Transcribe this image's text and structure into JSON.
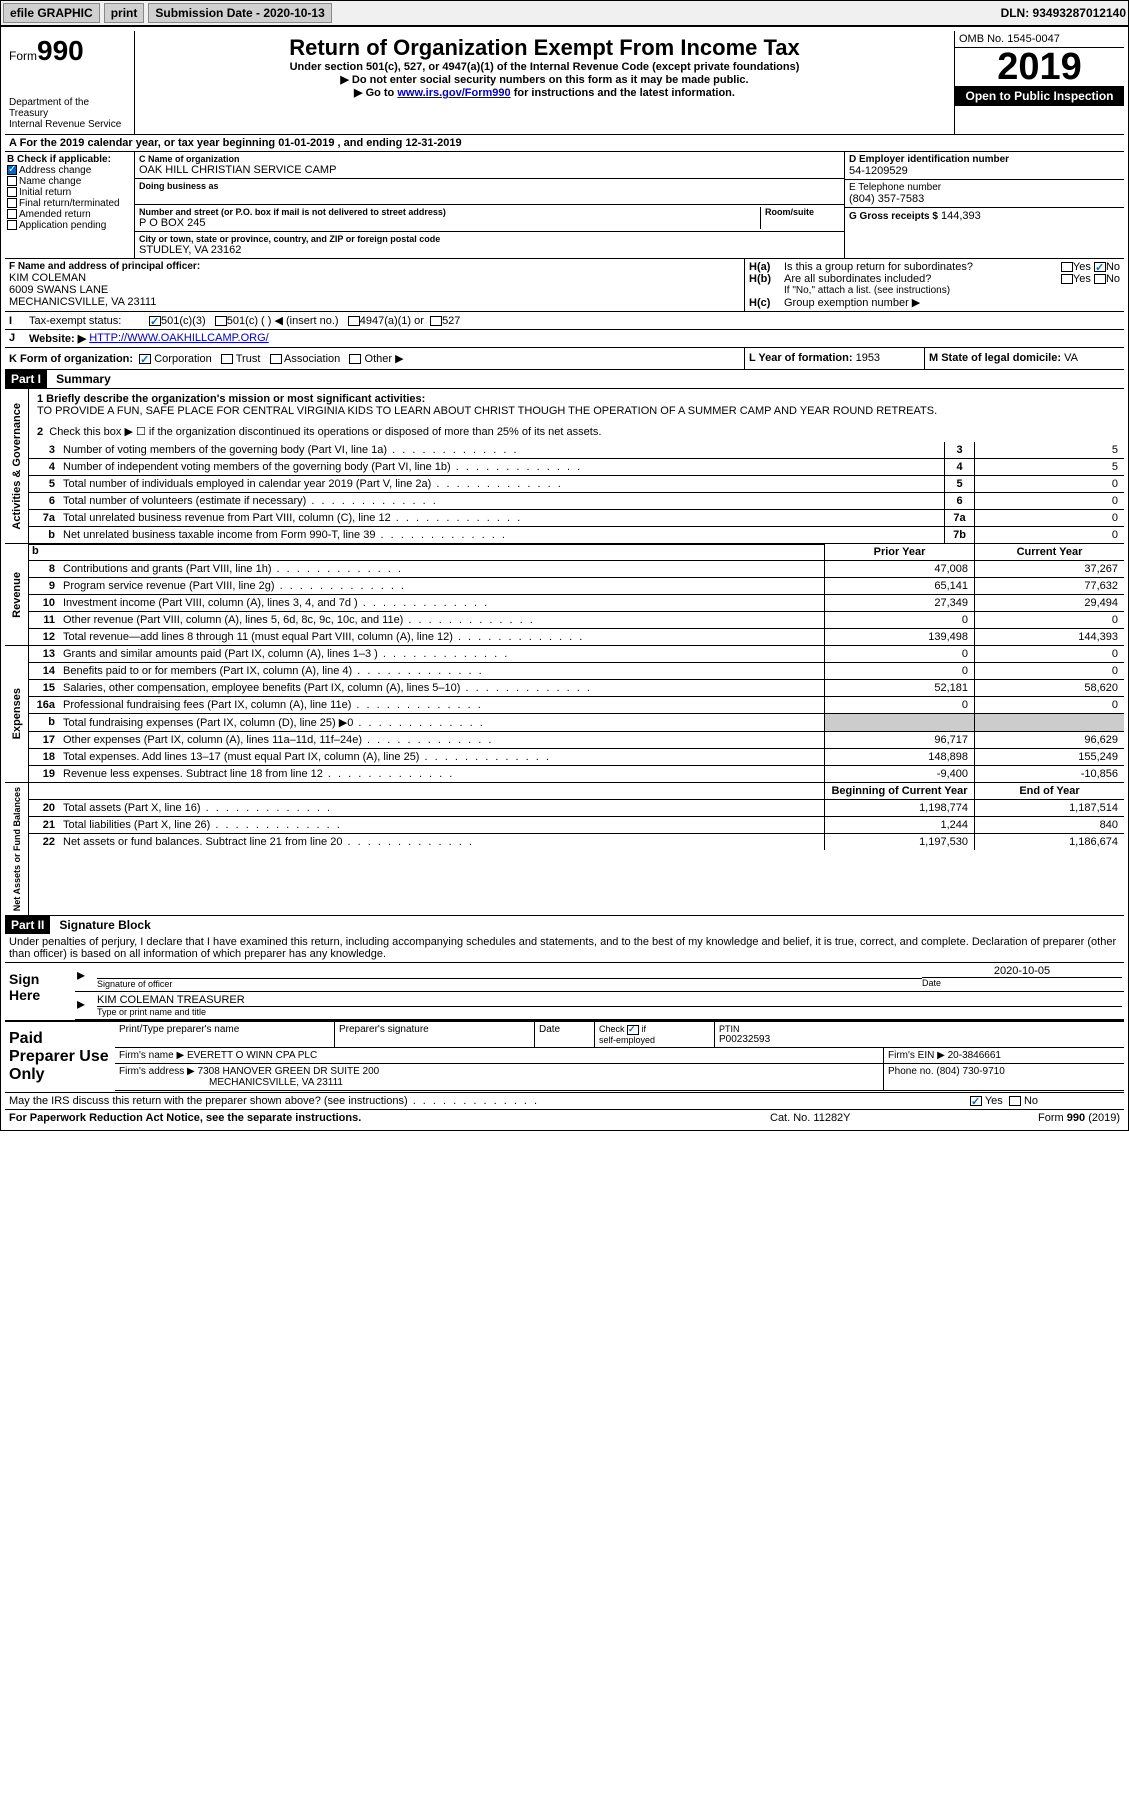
{
  "toolbar": {
    "efile_label": "efile GRAPHIC",
    "print_label": "print",
    "sub_date_label": "Submission Date - 2020-10-13",
    "dln": "DLN: 93493287012140"
  },
  "header": {
    "form_prefix": "Form",
    "form_number": "990",
    "title": "Return of Organization Exempt From Income Tax",
    "subtitle": "Under section 501(c), 527, or 4947(a)(1) of the Internal Revenue Code (except private foundations)",
    "line1": "▶ Do not enter social security numbers on this form as it may be made public.",
    "line2_pre": "▶ Go to ",
    "line2_link": "www.irs.gov/Form990",
    "line2_post": " for instructions and the latest information.",
    "dept": "Department of the Treasury\nInternal Revenue Service",
    "omb": "OMB No. 1545-0047",
    "year": "2019",
    "inspect": "Open to Public Inspection"
  },
  "section_a": "For the 2019 calendar year, or tax year beginning 01-01-2019    , and ending 12-31-2019",
  "box_b": {
    "label": "B Check if applicable:",
    "items": [
      "Address change",
      "Name change",
      "Initial return",
      "Final return/terminated",
      "Amended return",
      "Application pending"
    ],
    "checked": [
      true,
      false,
      false,
      false,
      false,
      false
    ]
  },
  "box_c": {
    "name_label": "C Name of organization",
    "name": "OAK HILL CHRISTIAN SERVICE CAMP",
    "dba_label": "Doing business as",
    "dba": "",
    "addr_label": "Number and street (or P.O. box if mail is not delivered to street address)",
    "room_label": "Room/suite",
    "addr": "P O BOX 245",
    "city_label": "City or town, state or province, country, and ZIP or foreign postal code",
    "city": "STUDLEY, VA  23162"
  },
  "box_d": {
    "label": "D Employer identification number",
    "val": "54-1209529"
  },
  "box_e": {
    "label": "E Telephone number",
    "val": "(804) 357-7583"
  },
  "box_g": {
    "label": "G Gross receipts $",
    "val": "144,393"
  },
  "box_f": {
    "label": "F  Name and address of principal officer:",
    "name": "KIM COLEMAN",
    "addr1": "6009 SWANS LANE",
    "addr2": "MECHANICSVILLE, VA  23111"
  },
  "box_h": {
    "a_label": "H(a)",
    "a_text": "Is this a group return for subordinates?",
    "a_no": true,
    "b_label": "H(b)",
    "b_text": "Are all subordinates included?",
    "note": "If \"No,\" attach a list. (see instructions)",
    "c_label": "H(c)",
    "c_text": "Group exemption number ▶"
  },
  "row_i": {
    "label": "Tax-exempt status:",
    "opts": [
      "501(c)(3)",
      "501(c) (  ) ◀ (insert no.)",
      "4947(a)(1) or",
      "527"
    ],
    "checked": [
      true,
      false,
      false,
      false
    ]
  },
  "row_j": {
    "label": "Website: ▶",
    "val": "HTTP://WWW.OAKHILLCAMP.ORG/"
  },
  "row_k": {
    "label": "K Form of organization:",
    "opts": [
      "Corporation",
      "Trust",
      "Association",
      "Other ▶"
    ],
    "checked": [
      true,
      false,
      false,
      false
    ],
    "l_label": "L Year of formation:",
    "l_val": "1953",
    "m_label": "M State of legal domicile:",
    "m_val": "VA"
  },
  "part1": {
    "hdr": "Part I",
    "title": "Summary",
    "q1_label": "1  Briefly describe the organization's mission or most significant activities:",
    "q1_text": "TO PROVIDE A FUN, SAFE PLACE FOR CENTRAL VIRGINIA KIDS TO LEARN ABOUT CHRIST THOUGH THE OPERATION OF A SUMMER CAMP AND YEAR ROUND RETREATS.",
    "q2": "Check this box ▶ ☐  if the organization discontinued its operations or disposed of more than 25% of its net assets.",
    "gov_label": "Activities & Governance",
    "gov_rows": [
      {
        "n": "3",
        "t": "Number of voting members of the governing body (Part VI, line 1a)",
        "box": "3",
        "v": "5"
      },
      {
        "n": "4",
        "t": "Number of independent voting members of the governing body (Part VI, line 1b)",
        "box": "4",
        "v": "5"
      },
      {
        "n": "5",
        "t": "Total number of individuals employed in calendar year 2019 (Part V, line 2a)",
        "box": "5",
        "v": "0"
      },
      {
        "n": "6",
        "t": "Total number of volunteers (estimate if necessary)",
        "box": "6",
        "v": "0"
      },
      {
        "n": "7a",
        "t": "Total unrelated business revenue from Part VIII, column (C), line 12",
        "box": "7a",
        "v": "0"
      },
      {
        "n": "b",
        "t": "Net unrelated business taxable income from Form 990-T, line 39",
        "box": "7b",
        "v": "0"
      }
    ],
    "col_prior": "Prior Year",
    "col_current": "Current Year",
    "rev_label": "Revenue",
    "rev_rows": [
      {
        "n": "8",
        "t": "Contributions and grants (Part VIII, line 1h)",
        "p": "47,008",
        "c": "37,267"
      },
      {
        "n": "9",
        "t": "Program service revenue (Part VIII, line 2g)",
        "p": "65,141",
        "c": "77,632"
      },
      {
        "n": "10",
        "t": "Investment income (Part VIII, column (A), lines 3, 4, and 7d )",
        "p": "27,349",
        "c": "29,494"
      },
      {
        "n": "11",
        "t": "Other revenue (Part VIII, column (A), lines 5, 6d, 8c, 9c, 10c, and 11e)",
        "p": "0",
        "c": "0"
      },
      {
        "n": "12",
        "t": "Total revenue—add lines 8 through 11 (must equal Part VIII, column (A), line 12)",
        "p": "139,498",
        "c": "144,393"
      }
    ],
    "exp_label": "Expenses",
    "exp_rows": [
      {
        "n": "13",
        "t": "Grants and similar amounts paid (Part IX, column (A), lines 1–3 )",
        "p": "0",
        "c": "0"
      },
      {
        "n": "14",
        "t": "Benefits paid to or for members (Part IX, column (A), line 4)",
        "p": "0",
        "c": "0"
      },
      {
        "n": "15",
        "t": "Salaries, other compensation, employee benefits (Part IX, column (A), lines 5–10)",
        "p": "52,181",
        "c": "58,620"
      },
      {
        "n": "16a",
        "t": "Professional fundraising fees (Part IX, column (A), line 11e)",
        "p": "0",
        "c": "0"
      },
      {
        "n": "b",
        "t": "Total fundraising expenses (Part IX, column (D), line 25) ▶0",
        "p": "",
        "c": "",
        "shade": true
      },
      {
        "n": "17",
        "t": "Other expenses (Part IX, column (A), lines 11a–11d, 11f–24e)",
        "p": "96,717",
        "c": "96,629"
      },
      {
        "n": "18",
        "t": "Total expenses. Add lines 13–17 (must equal Part IX, column (A), line 25)",
        "p": "148,898",
        "c": "155,249"
      },
      {
        "n": "19",
        "t": "Revenue less expenses. Subtract line 18 from line 12",
        "p": "-9,400",
        "c": "-10,856"
      }
    ],
    "net_label": "Net Assets or Fund Balances",
    "net_col1": "Beginning of Current Year",
    "net_col2": "End of Year",
    "net_rows": [
      {
        "n": "20",
        "t": "Total assets (Part X, line 16)",
        "p": "1,198,774",
        "c": "1,187,514"
      },
      {
        "n": "21",
        "t": "Total liabilities (Part X, line 26)",
        "p": "1,244",
        "c": "840"
      },
      {
        "n": "22",
        "t": "Net assets or fund balances. Subtract line 21 from line 20",
        "p": "1,197,530",
        "c": "1,186,674"
      }
    ]
  },
  "part2": {
    "hdr": "Part II",
    "title": "Signature Block",
    "text": "Under penalties of perjury, I declare that I have examined this return, including accompanying schedules and statements, and to the best of my knowledge and belief, it is true, correct, and complete. Declaration of preparer (other than officer) is based on all information of which preparer has any knowledge.",
    "sign_here": "Sign Here",
    "sig_label": "Signature of officer",
    "date_label": "Date",
    "date_val": "2020-10-05",
    "name_label": "Type or print name and title",
    "name_val": "KIM COLEMAN  TREASURER",
    "paid": "Paid Preparer Use Only",
    "prep_name_label": "Print/Type preparer's name",
    "prep_sig_label": "Preparer's signature",
    "prep_date_label": "Date",
    "check_if": "Check ☑ if self-employed",
    "ptin_label": "PTIN",
    "ptin": "P00232593",
    "firm_name_label": "Firm's name    ▶",
    "firm_name": "EVERETT O WINN CPA PLC",
    "firm_ein_label": "Firm's EIN ▶",
    "firm_ein": "20-3846661",
    "firm_addr_label": "Firm's address ▶",
    "firm_addr1": "7308 HANOVER GREEN DR SUITE 200",
    "firm_addr2": "MECHANICSVILLE, VA  23111",
    "phone_label": "Phone no.",
    "phone": "(804) 730-9710",
    "discuss": "May the IRS discuss this return with the preparer shown above? (see instructions)",
    "discuss_yes": true
  },
  "footer": {
    "left": "For Paperwork Reduction Act Notice, see the separate instructions.",
    "mid": "Cat. No. 11282Y",
    "right": "Form 990 (2019)"
  }
}
